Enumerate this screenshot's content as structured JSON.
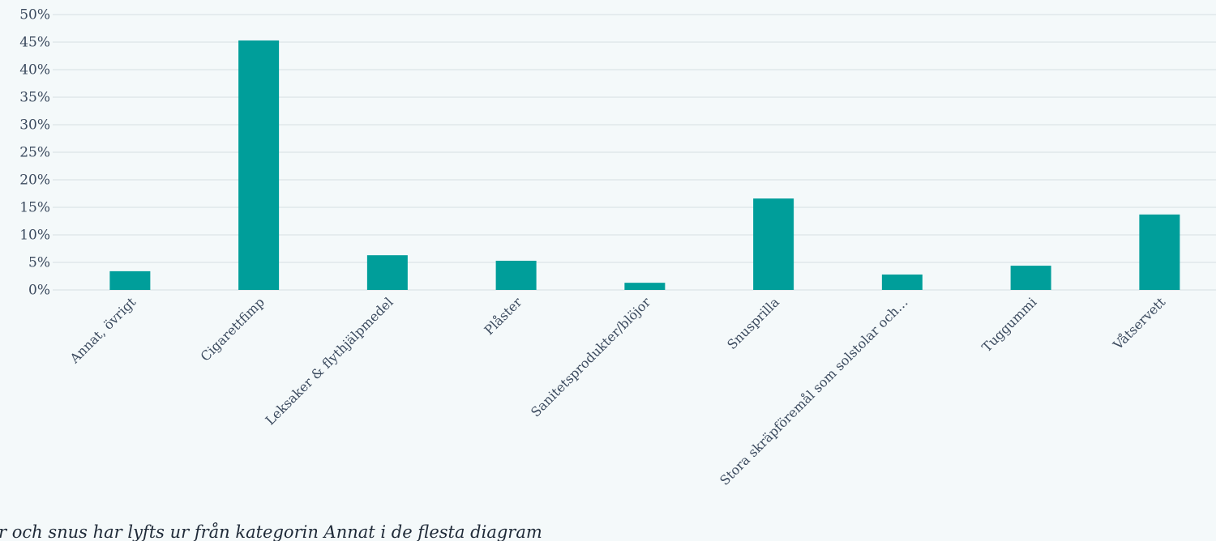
{
  "chart_data": {
    "type": "bar",
    "categories": [
      "Annat, övrigt",
      "Cigarettfimp",
      "Leksaker & flythjälpmedel",
      "Plåster",
      "Sanitetsprodukter/blöjor",
      "Snusprilla",
      "Stora skräpföremål som solstolar och…",
      "Tuggummi",
      "Våtservett"
    ],
    "values": [
      3.4,
      45.3,
      6.3,
      5.3,
      1.3,
      16.6,
      2.8,
      4.4,
      13.7
    ],
    "color": "#009e9a",
    "ylim": [
      0,
      50
    ],
    "yticks": [
      {
        "value": 0,
        "label": "0%"
      },
      {
        "value": 5,
        "label": "5%"
      },
      {
        "value": 10,
        "label": "10%"
      },
      {
        "value": 15,
        "label": "15%"
      },
      {
        "value": 20,
        "label": "20%"
      },
      {
        "value": 25,
        "label": "25%"
      },
      {
        "value": 30,
        "label": "30%"
      },
      {
        "value": 35,
        "label": "35%"
      },
      {
        "value": 40,
        "label": "40%"
      },
      {
        "value": 45,
        "label": "45%"
      },
      {
        "value": 50,
        "label": "50%"
      }
    ],
    "grid": true,
    "annotation": "r och snus har lyfts ur från kategorin Annat i de flesta diagram"
  }
}
